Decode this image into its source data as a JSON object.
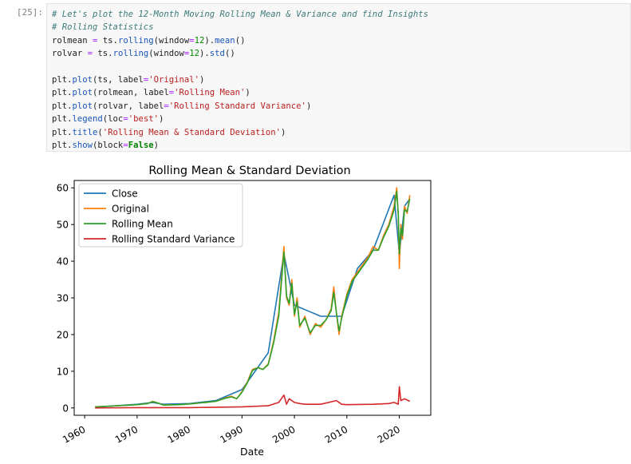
{
  "notebook": {
    "cell": {
      "prompt": "[25]:",
      "code_lines": [
        [
          {
            "t": "# Let's plot the 12-Month Moving Rolling Mean & Variance and find Insights",
            "c": "comment"
          }
        ],
        [
          {
            "t": "# Rolling Statistics",
            "c": "comment"
          }
        ],
        [
          {
            "t": "rolmean "
          },
          {
            "t": "=",
            "c": "op"
          },
          {
            "t": " ts."
          },
          {
            "t": "rolling",
            "c": "fn"
          },
          {
            "t": "(window"
          },
          {
            "t": "=",
            "c": "op"
          },
          {
            "t": "12",
            "c": "num"
          },
          {
            "t": ")."
          },
          {
            "t": "mean",
            "c": "fn"
          },
          {
            "t": "()"
          }
        ],
        [
          {
            "t": "rolvar "
          },
          {
            "t": "=",
            "c": "op"
          },
          {
            "t": " ts."
          },
          {
            "t": "rolling",
            "c": "fn"
          },
          {
            "t": "(window"
          },
          {
            "t": "=",
            "c": "op"
          },
          {
            "t": "12",
            "c": "num"
          },
          {
            "t": ")."
          },
          {
            "t": "std",
            "c": "fn"
          },
          {
            "t": "()"
          }
        ],
        [],
        [
          {
            "t": "plt."
          },
          {
            "t": "plot",
            "c": "fn"
          },
          {
            "t": "(ts, label"
          },
          {
            "t": "=",
            "c": "op"
          },
          {
            "t": "'Original'",
            "c": "str"
          },
          {
            "t": ")"
          }
        ],
        [
          {
            "t": "plt."
          },
          {
            "t": "plot",
            "c": "fn"
          },
          {
            "t": "(rolmean, label"
          },
          {
            "t": "=",
            "c": "op"
          },
          {
            "t": "'Rolling Mean'",
            "c": "str"
          },
          {
            "t": ")"
          }
        ],
        [
          {
            "t": "plt."
          },
          {
            "t": "plot",
            "c": "fn"
          },
          {
            "t": "(rolvar, label"
          },
          {
            "t": "=",
            "c": "op"
          },
          {
            "t": "'Rolling Standard Variance'",
            "c": "str"
          },
          {
            "t": ")"
          }
        ],
        [
          {
            "t": "plt."
          },
          {
            "t": "legend",
            "c": "fn"
          },
          {
            "t": "(loc"
          },
          {
            "t": "=",
            "c": "op"
          },
          {
            "t": "'best'",
            "c": "str"
          },
          {
            "t": ")"
          }
        ],
        [
          {
            "t": "plt."
          },
          {
            "t": "title",
            "c": "fn"
          },
          {
            "t": "("
          },
          {
            "t": "'Rolling Mean & Standard Deviation'",
            "c": "str"
          },
          {
            "t": ")"
          }
        ],
        [
          {
            "t": "plt."
          },
          {
            "t": "show",
            "c": "fn"
          },
          {
            "t": "(block"
          },
          {
            "t": "=",
            "c": "op"
          },
          {
            "t": "False",
            "c": "kw"
          },
          {
            "t": ")"
          }
        ]
      ]
    }
  },
  "chart_data": {
    "type": "line",
    "title": "Rolling Mean & Standard Deviation",
    "xlabel": "Date",
    "ylabel": "",
    "xlim": [
      1958,
      2026
    ],
    "ylim": [
      -2,
      62
    ],
    "xticks": [
      1960,
      1970,
      1980,
      1990,
      2000,
      2010,
      2020
    ],
    "yticks": [
      0,
      10,
      20,
      30,
      40,
      50,
      60
    ],
    "grid": false,
    "legend_position": "top-left",
    "series": [
      {
        "name": "Close",
        "color": "#1f77b4",
        "x": [
          1962,
          1970,
          1973,
          1975,
          1980,
          1985,
          1990,
          1995,
          1998,
          2000,
          2005,
          2009,
          2012,
          2015,
          2019,
          2020,
          2021,
          2022
        ],
        "y": [
          0.2,
          1.0,
          1.5,
          1.0,
          1.2,
          2.0,
          5.0,
          15.0,
          42.0,
          28.0,
          25.0,
          25.0,
          38.0,
          43.0,
          58.0,
          42.0,
          55.0,
          57.0
        ]
      },
      {
        "name": "Original",
        "color": "#ff7f0e",
        "x": [
          1962,
          1965,
          1970,
          1972,
          1973,
          1974,
          1975,
          1978,
          1980,
          1983,
          1985,
          1987,
          1988,
          1989,
          1990,
          1991,
          1992,
          1993,
          1994,
          1995,
          1996,
          1997,
          1997.5,
          1998,
          1998.5,
          1999,
          1999.5,
          2000,
          2000.5,
          2001,
          2002,
          2003,
          2004,
          2005,
          2006,
          2007,
          2007.5,
          2008,
          2008.5,
          2009,
          2010,
          2011,
          2012,
          2013,
          2014,
          2015,
          2016,
          2017,
          2018,
          2019,
          2019.5,
          2019.8,
          2020,
          2020.3,
          2020.6,
          2021,
          2021.5,
          2022
        ],
        "y": [
          0.3,
          0.5,
          0.9,
          1.2,
          1.8,
          1.3,
          0.8,
          0.9,
          1.1,
          1.5,
          1.8,
          2.8,
          3.2,
          2.5,
          4.5,
          7.0,
          10.5,
          11.0,
          10.5,
          12.0,
          18.0,
          26.0,
          35.0,
          44.0,
          30.0,
          28.0,
          35.0,
          25.0,
          30.0,
          22.0,
          25.0,
          20.0,
          23.0,
          22.0,
          24.0,
          27.0,
          33.0,
          26.0,
          20.0,
          25.0,
          31.0,
          35.0,
          37.0,
          39.0,
          41.0,
          44.0,
          43.0,
          47.0,
          50.0,
          55.0,
          60.0,
          53.0,
          38.0,
          50.0,
          46.0,
          55.0,
          53.0,
          58.0
        ]
      },
      {
        "name": "Rolling Mean",
        "color": "#2ca02c",
        "x": [
          1962,
          1965,
          1970,
          1972,
          1973,
          1974,
          1975,
          1978,
          1980,
          1983,
          1985,
          1987,
          1988,
          1989,
          1990,
          1991,
          1992,
          1993,
          1994,
          1995,
          1996,
          1997,
          1997.5,
          1998,
          1998.5,
          1999,
          1999.5,
          2000,
          2000.5,
          2001,
          2002,
          2003,
          2004,
          2005,
          2006,
          2007,
          2007.5,
          2008,
          2008.5,
          2009,
          2010,
          2011,
          2012,
          2013,
          2014,
          2015,
          2016,
          2017,
          2018,
          2019,
          2019.5,
          2019.8,
          2020,
          2020.3,
          2020.6,
          2021,
          2021.5,
          2022
        ],
        "y": [
          0.3,
          0.5,
          0.9,
          1.2,
          1.7,
          1.3,
          0.8,
          0.9,
          1.1,
          1.5,
          1.8,
          2.7,
          3.0,
          2.5,
          4.3,
          6.8,
          10.2,
          11.0,
          10.5,
          11.8,
          17.5,
          25.0,
          34.0,
          42.5,
          30.5,
          28.5,
          34.0,
          25.5,
          29.0,
          22.5,
          24.5,
          20.5,
          22.5,
          22.5,
          24.0,
          26.5,
          31.5,
          26.0,
          21.0,
          24.5,
          30.5,
          34.5,
          36.5,
          38.5,
          40.5,
          43.0,
          43.0,
          46.5,
          49.5,
          54.0,
          59.0,
          53.0,
          42.0,
          49.0,
          47.0,
          54.0,
          53.5,
          57.0
        ]
      },
      {
        "name": "Rolling Standard Variance",
        "color": "#d62728",
        "x": [
          1962,
          1970,
          1980,
          1990,
          1995,
          1997,
          1998,
          1998.5,
          1999,
          2000,
          2001,
          2002,
          2005,
          2008,
          2009,
          2010,
          2015,
          2018,
          2019,
          2019.8,
          2020,
          2020.3,
          2021,
          2022
        ],
        "y": [
          0.0,
          0.1,
          0.1,
          0.3,
          0.6,
          1.5,
          3.5,
          1.0,
          2.5,
          1.5,
          1.2,
          1.0,
          1.0,
          2.0,
          1.0,
          0.9,
          1.0,
          1.2,
          1.5,
          1.0,
          5.8,
          2.0,
          2.5,
          1.8
        ]
      }
    ]
  }
}
